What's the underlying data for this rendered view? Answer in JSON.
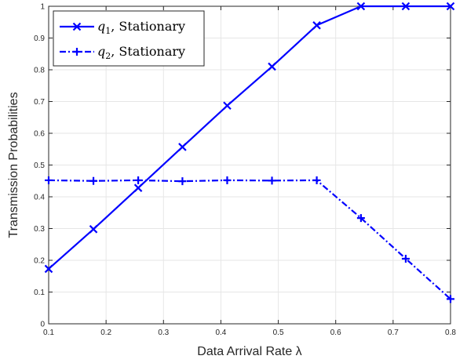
{
  "chart_data": {
    "type": "line",
    "xlabel": "Data Arrival Rate λ",
    "ylabel": "Transmission Probabilities",
    "xlim": [
      0.1,
      0.8
    ],
    "ylim": [
      0,
      1
    ],
    "xticks": [
      0.1,
      0.2,
      0.3,
      0.4,
      0.5,
      0.6,
      0.7,
      0.8
    ],
    "xtick_labels": [
      "0.1",
      "0.2",
      "0.3",
      "0.4",
      "0.5",
      "0.6",
      "0.7",
      "0.8"
    ],
    "yticks": [
      0,
      0.1,
      0.2,
      0.3,
      0.4,
      0.5,
      0.6,
      0.7,
      0.8,
      0.9,
      1
    ],
    "ytick_labels": [
      "0",
      "0.1",
      "0.2",
      "0.3",
      "0.4",
      "0.5",
      "0.6",
      "0.7",
      "0.8",
      "0.9",
      "1"
    ],
    "grid": true,
    "legend_position": "top-left",
    "x": [
      0.1,
      0.178,
      0.256,
      0.333,
      0.411,
      0.489,
      0.567,
      0.644,
      0.722,
      0.8
    ],
    "series": [
      {
        "name": "q1, Stationary",
        "name_symbol": "q",
        "name_subscript": "1",
        "name_rest": ", Stationary",
        "values": [
          0.173,
          0.298,
          0.428,
          0.557,
          0.687,
          0.81,
          0.94,
          1.0,
          1.0,
          1.0
        ],
        "color": "#0000ff",
        "line_style": "solid",
        "marker": "x"
      },
      {
        "name": "q2, Stationary",
        "name_symbol": "q",
        "name_subscript": "2",
        "name_rest": ", Stationary",
        "values": [
          0.452,
          0.45,
          0.452,
          0.449,
          0.452,
          0.451,
          0.452,
          0.333,
          0.205,
          0.078
        ],
        "color": "#0000ff",
        "line_style": "dashdot",
        "marker": "+"
      }
    ]
  }
}
